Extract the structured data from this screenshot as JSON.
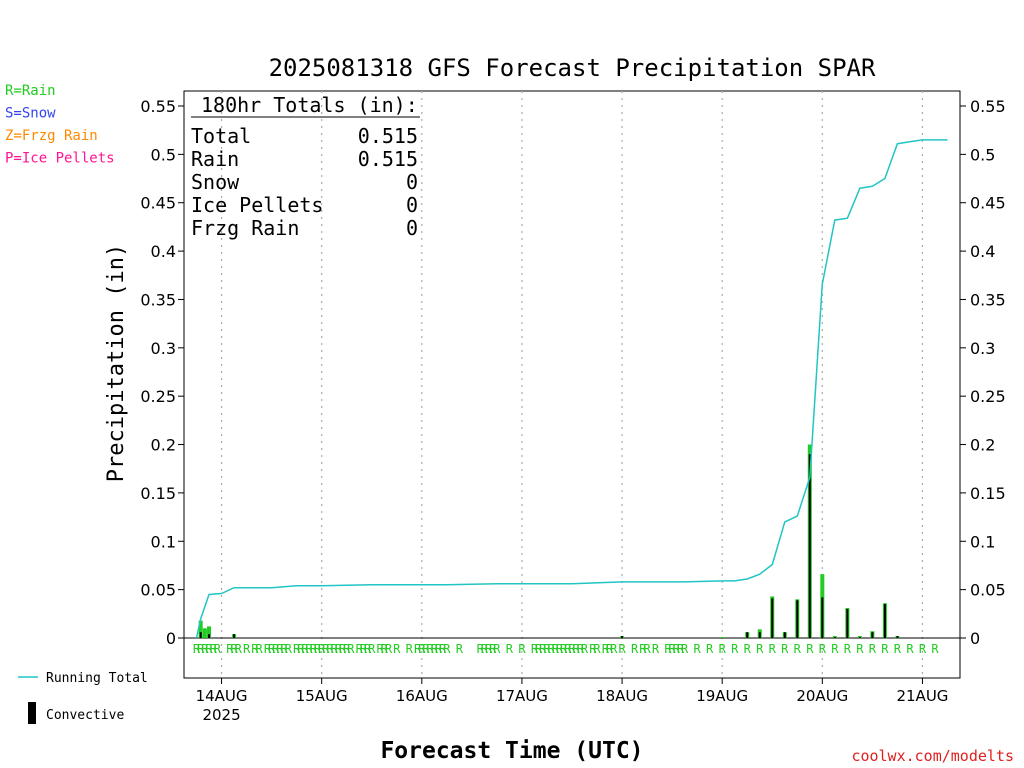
{
  "chart_data": {
    "type": "bar",
    "title": "2025081318 GFS Forecast Precipitation SPAR",
    "xlabel": "Forecast Time (UTC)",
    "ylabel": "Precipitation (in)",
    "ylim": [
      0,
      0.57
    ],
    "xlim_hours": [
      -3,
      183
    ],
    "y_ticks": [
      0,
      0.05,
      0.1,
      0.15,
      0.2,
      0.25,
      0.3,
      0.35,
      0.4,
      0.45,
      0.5,
      0.55
    ],
    "y_tick_labels": [
      "0",
      "0.05",
      "0.1",
      "0.15",
      "0.2",
      "0.25",
      "0.3",
      "0.35",
      "0.4",
      "0.45",
      "0.5",
      "0.55"
    ],
    "x_ticks": [
      {
        "hour": 6,
        "label": "14AUG",
        "sub": "2025"
      },
      {
        "hour": 30,
        "label": "15AUG",
        "sub": ""
      },
      {
        "hour": 54,
        "label": "16AUG",
        "sub": ""
      },
      {
        "hour": 78,
        "label": "17AUG",
        "sub": ""
      },
      {
        "hour": 102,
        "label": "18AUG",
        "sub": ""
      },
      {
        "hour": 126,
        "label": "19AUG",
        "sub": ""
      },
      {
        "hour": 150,
        "label": "20AUG",
        "sub": ""
      },
      {
        "hour": 174,
        "label": "21AUG",
        "sub": ""
      }
    ],
    "grid": "vertical-dotted",
    "legend": {
      "ptype": [
        {
          "label": "R=Rain",
          "color": "#22cc22"
        },
        {
          "label": "S=Snow",
          "color": "#3344ee"
        },
        {
          "label": "Z=Frzg Rain",
          "color": "#ff8800"
        },
        {
          "label": "P=Ice Pellets",
          "color": "#ff1493"
        }
      ],
      "running_total_label": "Running Total",
      "convective_label": "Convective"
    },
    "totals_box": {
      "header": "180hr Totals (in):",
      "rows": [
        {
          "label": "Total",
          "value": "0.515"
        },
        {
          "label": "Rain",
          "value": "0.515"
        },
        {
          "label": "Snow",
          "value": "0"
        },
        {
          "label": "Ice Pellets",
          "value": "0"
        },
        {
          "label": "Frzg Rain",
          "value": "0"
        }
      ]
    },
    "series": [
      {
        "name": "Running Total",
        "color": "#22c4c4",
        "points": [
          [
            0,
            0
          ],
          [
            1,
            0.02
          ],
          [
            3,
            0.045
          ],
          [
            6,
            0.046
          ],
          [
            9,
            0.052
          ],
          [
            12,
            0.052
          ],
          [
            18,
            0.052
          ],
          [
            21,
            0.053
          ],
          [
            24,
            0.054
          ],
          [
            30,
            0.054
          ],
          [
            42,
            0.055
          ],
          [
            60,
            0.055
          ],
          [
            72,
            0.056
          ],
          [
            90,
            0.056
          ],
          [
            102,
            0.058
          ],
          [
            117,
            0.058
          ],
          [
            126,
            0.059
          ],
          [
            129,
            0.059
          ],
          [
            132,
            0.061
          ],
          [
            135,
            0.066
          ],
          [
            138,
            0.076
          ],
          [
            141,
            0.12
          ],
          [
            144,
            0.126
          ],
          [
            147,
            0.166
          ],
          [
            150,
            0.366
          ],
          [
            153,
            0.432
          ],
          [
            156,
            0.434
          ],
          [
            159,
            0.465
          ],
          [
            162,
            0.467
          ],
          [
            165,
            0.475
          ],
          [
            168,
            0.511
          ],
          [
            171,
            0.513
          ],
          [
            174,
            0.515
          ],
          [
            180,
            0.515
          ]
        ]
      },
      {
        "name": "Rain",
        "color": "#22cc22",
        "bars": [
          [
            1,
            0.018
          ],
          [
            2,
            0.01
          ],
          [
            3,
            0.012
          ],
          [
            9,
            0.004
          ],
          [
            102,
            0.002
          ],
          [
            126,
            0.001
          ],
          [
            132,
            0.006
          ],
          [
            135,
            0.009
          ],
          [
            138,
            0.043
          ],
          [
            141,
            0.006
          ],
          [
            144,
            0.04
          ],
          [
            147,
            0.2
          ],
          [
            150,
            0.066
          ],
          [
            153,
            0.002
          ],
          [
            156,
            0.031
          ],
          [
            159,
            0.002
          ],
          [
            162,
            0.007
          ],
          [
            165,
            0.036
          ],
          [
            168,
            0.002
          ]
        ]
      },
      {
        "name": "Convective",
        "color": "#000000",
        "bars": [
          [
            1,
            0.006
          ],
          [
            3,
            0.004
          ],
          [
            9,
            0.004
          ],
          [
            102,
            0.002
          ],
          [
            132,
            0.006
          ],
          [
            135,
            0.006
          ],
          [
            138,
            0.041
          ],
          [
            141,
            0.006
          ],
          [
            144,
            0.039
          ],
          [
            147,
            0.19
          ],
          [
            150,
            0.042
          ],
          [
            153,
            0.001
          ],
          [
            156,
            0.03
          ],
          [
            159,
            0.001
          ],
          [
            162,
            0.006
          ],
          [
            165,
            0.035
          ],
          [
            168,
            0.002
          ]
        ]
      }
    ],
    "ptype_hours": [
      0,
      1,
      2,
      3,
      4,
      5,
      8,
      9,
      10,
      12,
      14,
      15,
      17,
      18,
      19,
      20,
      21,
      22,
      24,
      25,
      26,
      27,
      28,
      29,
      30,
      31,
      32,
      33,
      34,
      35,
      36,
      37,
      39,
      40,
      41,
      42,
      44,
      45,
      46,
      48,
      51,
      53,
      54,
      55,
      56,
      57,
      58,
      59,
      60,
      63,
      68,
      69,
      70,
      71,
      72,
      75,
      78,
      81,
      82,
      83,
      84,
      85,
      86,
      87,
      88,
      89,
      90,
      91,
      92,
      93,
      95,
      96,
      98,
      99,
      100,
      102,
      105,
      107,
      108,
      110,
      113,
      114,
      115,
      116,
      117,
      120,
      123,
      126,
      129,
      132,
      135,
      138,
      141,
      144,
      147,
      150,
      153,
      156,
      159,
      162,
      165,
      168,
      171,
      174,
      177
    ],
    "ptype_letter": "R",
    "credit": "coolwx.com/modelts"
  }
}
